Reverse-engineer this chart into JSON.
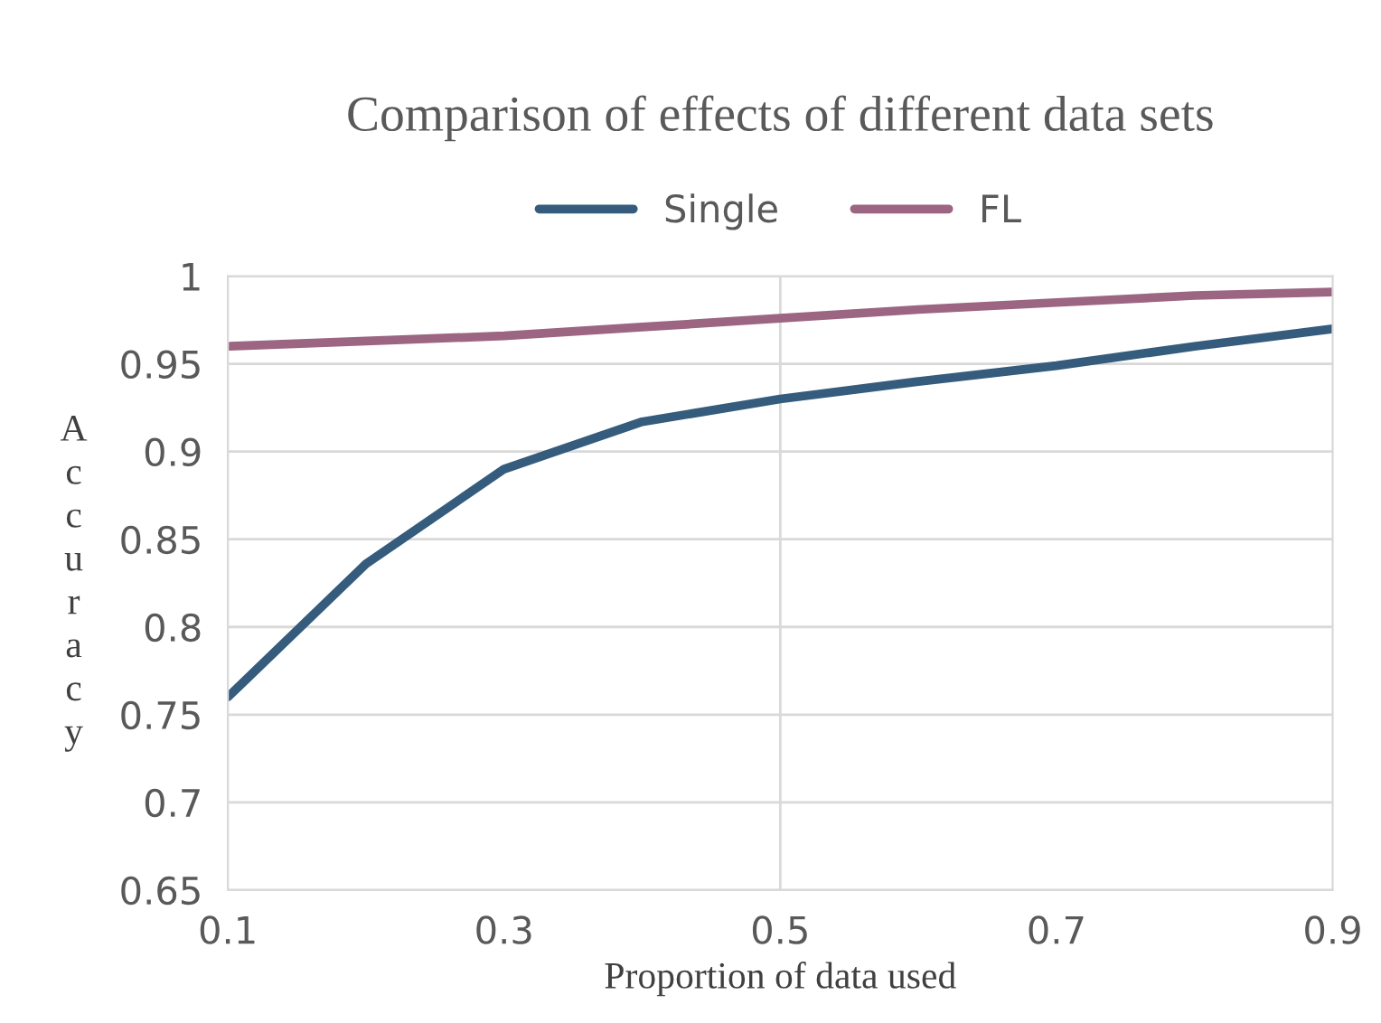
{
  "chart_data": {
    "type": "line",
    "title": "Comparison of effects of different data sets",
    "xlabel": "Proportion of data used",
    "ylabel": "Accuracy",
    "x": [
      0.1,
      0.2,
      0.3,
      0.4,
      0.5,
      0.6,
      0.7,
      0.8,
      0.9
    ],
    "series": [
      {
        "name": "Single",
        "color": "#355c7d",
        "values": [
          0.76,
          0.836,
          0.89,
          0.917,
          0.93,
          0.94,
          0.949,
          0.96,
          0.97
        ]
      },
      {
        "name": "FL",
        "color": "#9c6581",
        "values": [
          0.96,
          0.963,
          0.966,
          0.971,
          0.976,
          0.981,
          0.985,
          0.989,
          0.991
        ]
      }
    ],
    "xlim": [
      0.1,
      0.9
    ],
    "xticks": [
      0.1,
      0.3,
      0.5,
      0.7,
      0.9
    ],
    "ylim": [
      0.65,
      1
    ],
    "yticks": [
      0.65,
      0.7,
      0.75,
      0.8,
      0.85,
      0.9,
      0.95,
      1
    ],
    "grid": "y",
    "legend": "top",
    "line_style": "solid",
    "marker": "none",
    "ref_lines": [
      {
        "axis": "x",
        "value": 0.5,
        "label": null,
        "color": "#d9d9d9"
      }
    ]
  }
}
